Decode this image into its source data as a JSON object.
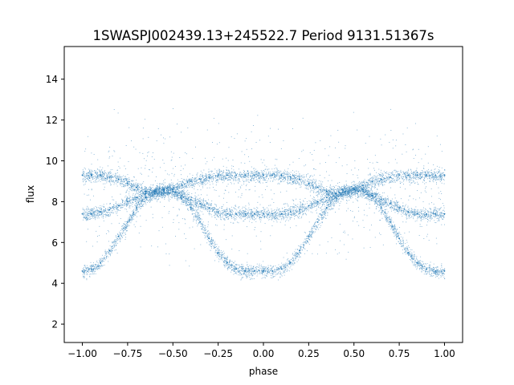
{
  "chart_data": {
    "type": "scatter",
    "title": "1SWASPJ002439.13+245522.7 Period 9131.51367s",
    "xlabel": "phase",
    "ylabel": "flux",
    "xlim": [
      -1.1,
      1.1
    ],
    "ylim": [
      1.1,
      15.6
    ],
    "xticks": [
      -1.0,
      -0.75,
      -0.5,
      -0.25,
      0.0,
      0.25,
      0.5,
      0.75,
      1.0
    ],
    "xtick_labels": [
      "−1.00",
      "−0.75",
      "−0.50",
      "−0.25",
      "0.00",
      "0.25",
      "0.50",
      "0.75",
      "1.00"
    ],
    "yticks": [
      2,
      4,
      6,
      8,
      10,
      12,
      14
    ],
    "ytick_labels": [
      "2",
      "4",
      "6",
      "8",
      "10",
      "12",
      "14"
    ],
    "grid": false,
    "marker_color": "#1f77b4",
    "series": [
      {
        "description_role": "deep-eclipse band",
        "x": [
          -1.0,
          -0.95,
          -0.9,
          -0.85,
          -0.8,
          -0.75,
          -0.7,
          -0.65,
          -0.6,
          -0.55,
          -0.5,
          -0.45,
          -0.4,
          -0.35,
          -0.3,
          -0.25,
          -0.2,
          -0.15,
          -0.1,
          -0.05,
          0.0,
          0.05,
          0.1,
          0.15,
          0.2,
          0.25,
          0.3,
          0.35,
          0.4,
          0.45,
          0.5,
          0.55,
          0.6,
          0.65,
          0.7,
          0.75,
          0.8,
          0.85,
          0.9,
          0.95,
          1.0
        ],
        "y": [
          4.6,
          4.7,
          5.0,
          5.6,
          6.3,
          7.0,
          7.7,
          8.2,
          8.5,
          8.6,
          8.6,
          8.3,
          7.7,
          7.0,
          6.2,
          5.5,
          5.0,
          4.7,
          4.6,
          4.6,
          4.6,
          4.6,
          4.7,
          5.0,
          5.6,
          6.3,
          7.0,
          7.7,
          8.2,
          8.5,
          8.6,
          8.6,
          8.3,
          7.7,
          7.0,
          6.2,
          5.5,
          5.0,
          4.7,
          4.6,
          4.6
        ]
      },
      {
        "description_role": "high band",
        "x": [
          -1.0,
          -0.95,
          -0.9,
          -0.85,
          -0.8,
          -0.75,
          -0.7,
          -0.65,
          -0.6,
          -0.55,
          -0.5,
          -0.45,
          -0.4,
          -0.35,
          -0.3,
          -0.25,
          -0.2,
          -0.15,
          -0.1,
          -0.05,
          0.0,
          0.05,
          0.1,
          0.15,
          0.2,
          0.25,
          0.3,
          0.35,
          0.4,
          0.45,
          0.5,
          0.55,
          0.6,
          0.65,
          0.7,
          0.75,
          0.8,
          0.85,
          0.9,
          0.95,
          1.0
        ],
        "y": [
          9.3,
          9.3,
          9.3,
          9.2,
          9.1,
          8.9,
          8.7,
          8.5,
          8.4,
          8.5,
          8.6,
          8.8,
          9.0,
          9.1,
          9.2,
          9.3,
          9.3,
          9.3,
          9.3,
          9.3,
          9.3,
          9.3,
          9.3,
          9.2,
          9.1,
          8.9,
          8.7,
          8.5,
          8.4,
          8.5,
          8.6,
          8.8,
          9.0,
          9.1,
          9.2,
          9.3,
          9.3,
          9.3,
          9.3,
          9.3,
          9.3
        ]
      },
      {
        "description_role": "middle band",
        "x": [
          -1.0,
          -0.95,
          -0.9,
          -0.85,
          -0.8,
          -0.75,
          -0.7,
          -0.65,
          -0.6,
          -0.55,
          -0.5,
          -0.45,
          -0.4,
          -0.35,
          -0.3,
          -0.25,
          -0.2,
          -0.15,
          -0.1,
          -0.05,
          0.0,
          0.05,
          0.1,
          0.15,
          0.2,
          0.25,
          0.3,
          0.35,
          0.4,
          0.45,
          0.5,
          0.55,
          0.6,
          0.65,
          0.7,
          0.75,
          0.8,
          0.85,
          0.9,
          0.95,
          1.0
        ],
        "y": [
          7.4,
          7.4,
          7.5,
          7.6,
          7.8,
          8.0,
          8.2,
          8.4,
          8.5,
          8.6,
          8.5,
          8.3,
          8.1,
          7.9,
          7.7,
          7.5,
          7.4,
          7.4,
          7.4,
          7.4,
          7.4,
          7.4,
          7.4,
          7.5,
          7.6,
          7.8,
          8.0,
          8.2,
          8.4,
          8.5,
          8.6,
          8.5,
          8.3,
          8.1,
          7.9,
          7.7,
          7.5,
          7.4,
          7.4,
          7.4,
          7.4
        ]
      }
    ]
  }
}
